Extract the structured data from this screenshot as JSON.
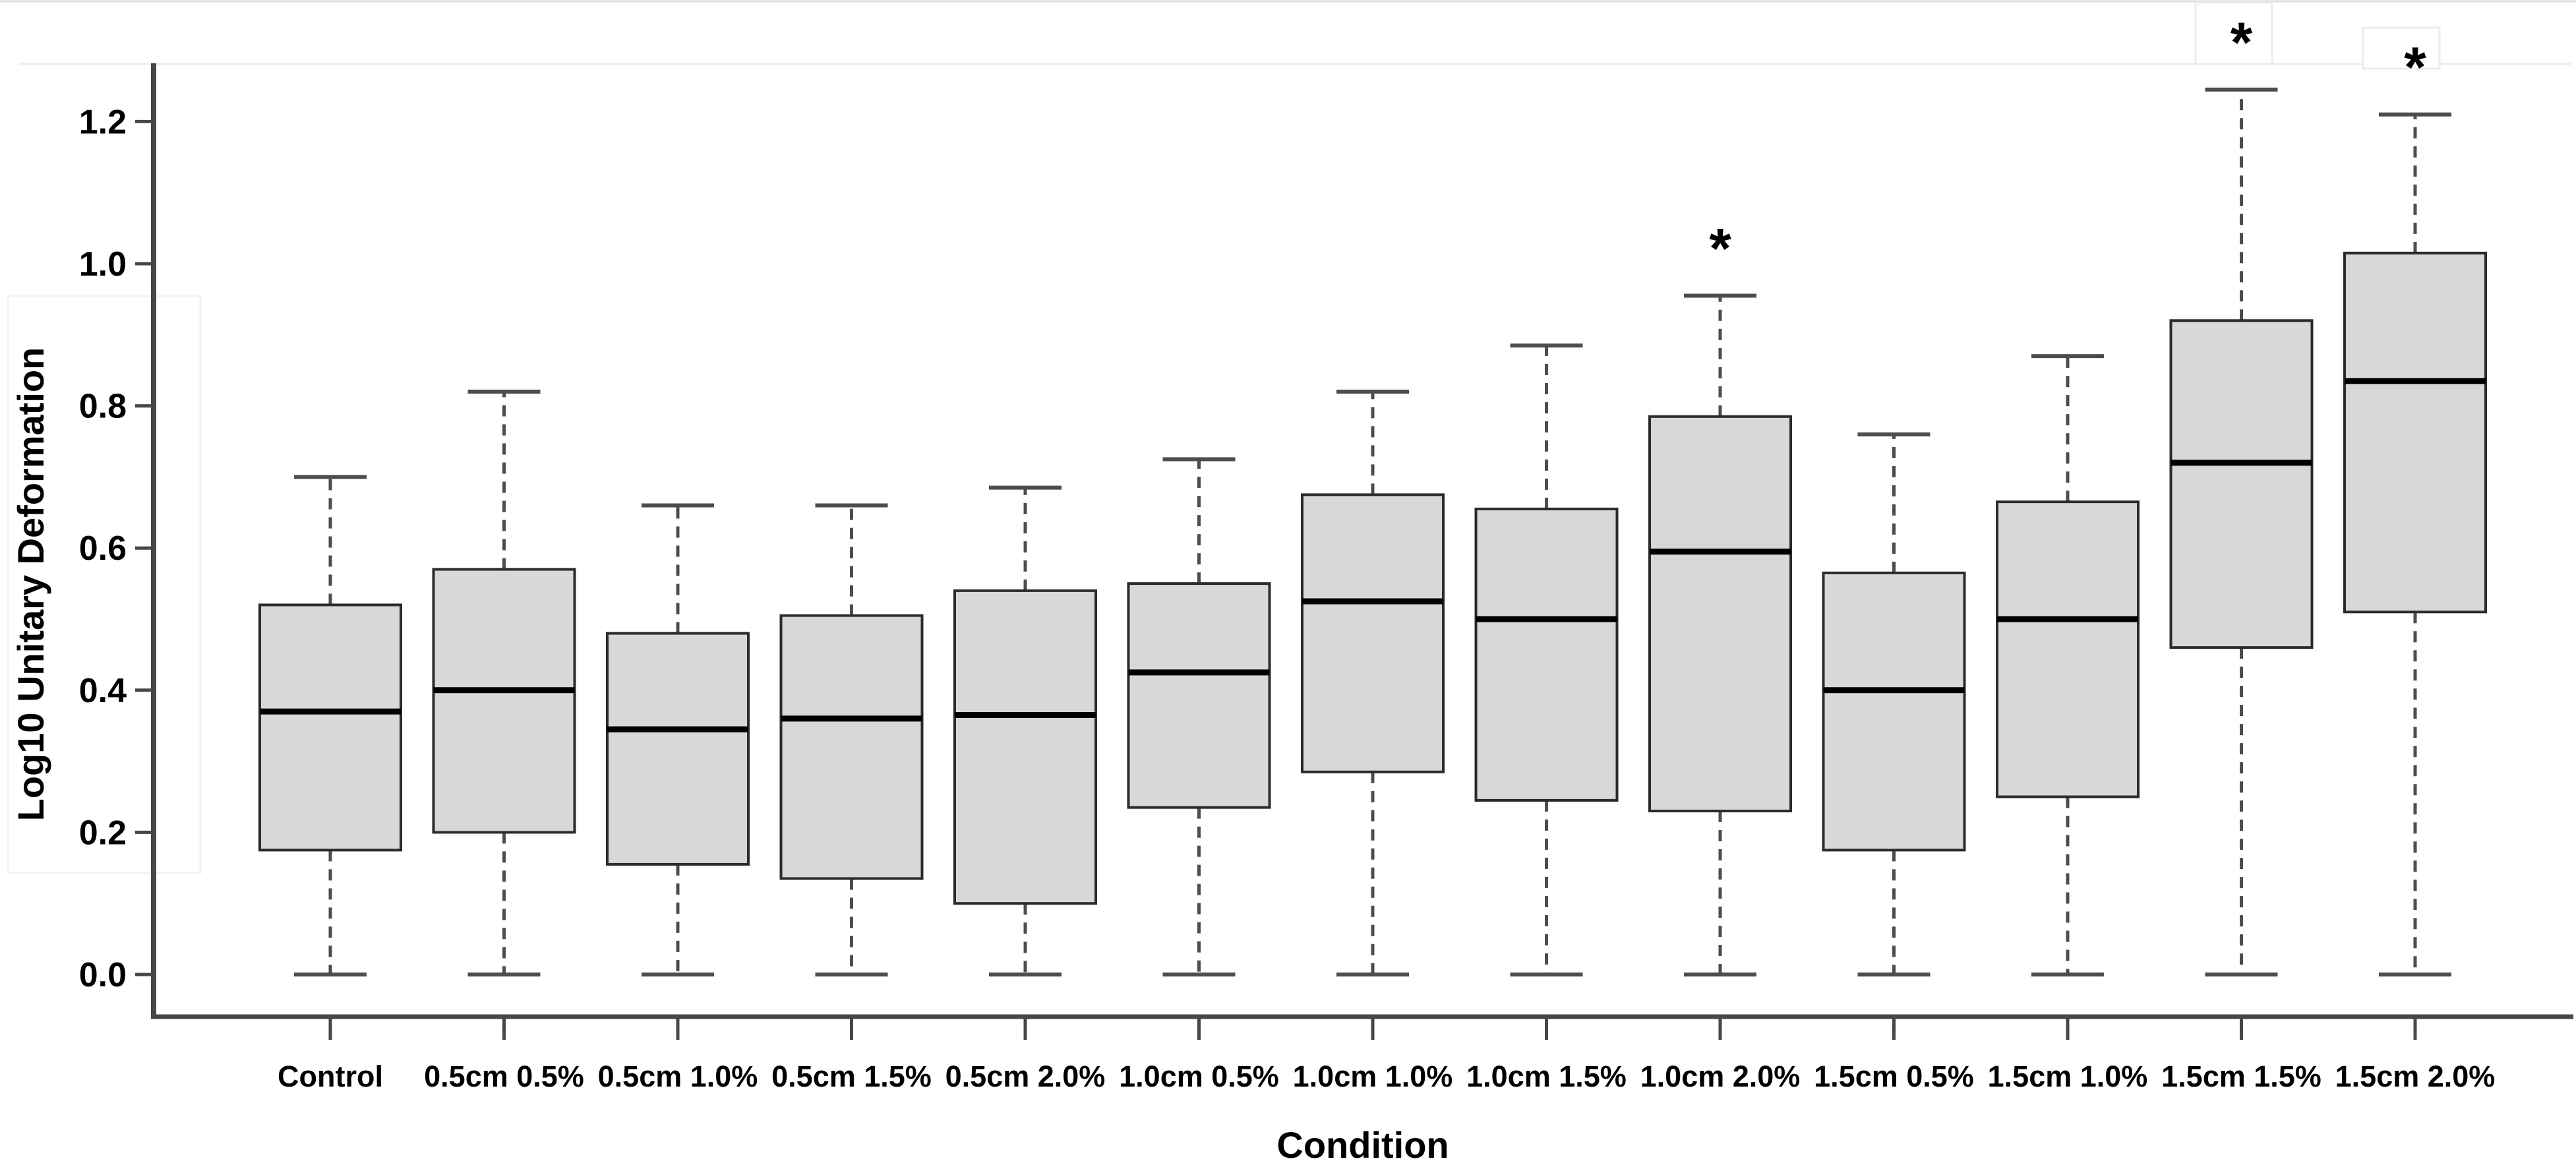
{
  "figure": {
    "xlabel": "Condition",
    "ylabel": "Log10 Unitary Deformation",
    "significance_marker": "*"
  },
  "chart_data": {
    "type": "box",
    "title": "",
    "xlabel": "Condition",
    "ylabel": "Log10 Unitary Deformation",
    "ylim": [
      0.0,
      1.3
    ],
    "yticks": [
      0.0,
      0.2,
      0.4,
      0.6,
      0.8,
      1.0,
      1.2
    ],
    "grid": false,
    "legend": null,
    "box_fill": "#d8d8d8",
    "box_border": "#2b2b2b",
    "median_color": "#000000",
    "whisker_color": "#4d4d4d",
    "categories": [
      "Control",
      "0.5cm 0.5%",
      "0.5cm 1.0%",
      "0.5cm 1.5%",
      "0.5cm 2.0%",
      "1.0cm 0.5%",
      "1.0cm 1.0%",
      "1.0cm 1.5%",
      "1.0cm 2.0%",
      "1.5cm 0.5%",
      "1.5cm 1.0%",
      "1.5cm 1.5%",
      "1.5cm 2.0%"
    ],
    "series": [
      {
        "label": "Control",
        "whisker_low": 0.0,
        "q1": 0.175,
        "median": 0.37,
        "q3": 0.52,
        "whisker_high": 0.7,
        "significant": false
      },
      {
        "label": "0.5cm 0.5%",
        "whisker_low": 0.0,
        "q1": 0.2,
        "median": 0.4,
        "q3": 0.57,
        "whisker_high": 0.82,
        "significant": false
      },
      {
        "label": "0.5cm 1.0%",
        "whisker_low": 0.0,
        "q1": 0.155,
        "median": 0.345,
        "q3": 0.48,
        "whisker_high": 0.66,
        "significant": false
      },
      {
        "label": "0.5cm 1.5%",
        "whisker_low": 0.0,
        "q1": 0.135,
        "median": 0.36,
        "q3": 0.505,
        "whisker_high": 0.66,
        "significant": false
      },
      {
        "label": "0.5cm 2.0%",
        "whisker_low": 0.0,
        "q1": 0.1,
        "median": 0.365,
        "q3": 0.54,
        "whisker_high": 0.685,
        "significant": false
      },
      {
        "label": "1.0cm 0.5%",
        "whisker_low": 0.0,
        "q1": 0.235,
        "median": 0.425,
        "q3": 0.55,
        "whisker_high": 0.725,
        "significant": false
      },
      {
        "label": "1.0cm 1.0%",
        "whisker_low": 0.0,
        "q1": 0.285,
        "median": 0.525,
        "q3": 0.675,
        "whisker_high": 0.82,
        "significant": false
      },
      {
        "label": "1.0cm 1.5%",
        "whisker_low": 0.0,
        "q1": 0.245,
        "median": 0.5,
        "q3": 0.655,
        "whisker_high": 0.885,
        "significant": false
      },
      {
        "label": "1.0cm 2.0%",
        "whisker_low": 0.0,
        "q1": 0.23,
        "median": 0.595,
        "q3": 0.785,
        "whisker_high": 0.955,
        "significant": true
      },
      {
        "label": "1.5cm 0.5%",
        "whisker_low": 0.0,
        "q1": 0.175,
        "median": 0.4,
        "q3": 0.565,
        "whisker_high": 0.76,
        "significant": false
      },
      {
        "label": "1.5cm 1.0%",
        "whisker_low": 0.0,
        "q1": 0.25,
        "median": 0.5,
        "q3": 0.665,
        "whisker_high": 0.87,
        "significant": false
      },
      {
        "label": "1.5cm 1.5%",
        "whisker_low": 0.0,
        "q1": 0.46,
        "median": 0.72,
        "q3": 0.92,
        "whisker_high": 1.245,
        "significant": true
      },
      {
        "label": "1.5cm 2.0%",
        "whisker_low": 0.0,
        "q1": 0.51,
        "median": 0.835,
        "q3": 1.015,
        "whisker_high": 1.21,
        "significant": true
      }
    ],
    "annotations": {
      "marker": "*",
      "significant_categories": [
        "1.0cm 2.0%",
        "1.5cm 1.5%",
        "1.5cm 2.0%"
      ]
    }
  }
}
